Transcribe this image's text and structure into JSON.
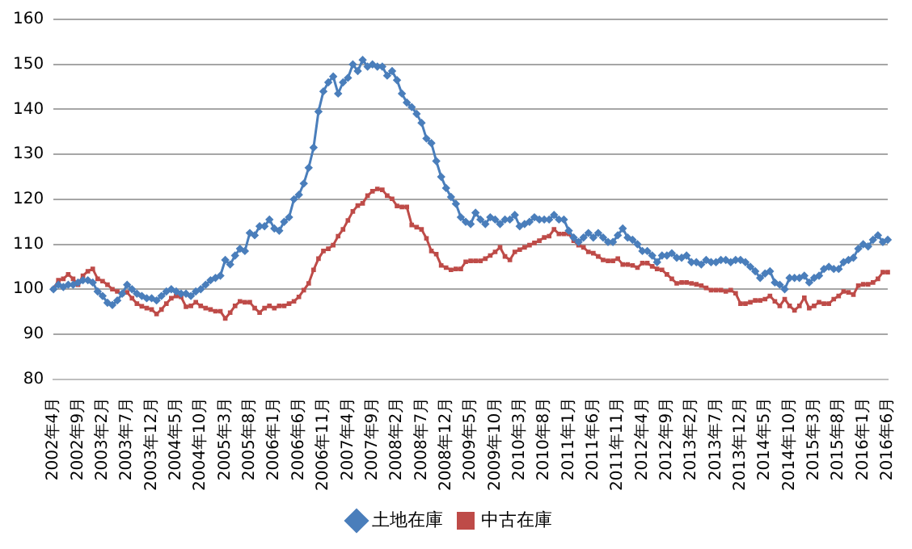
{
  "chart_data": {
    "type": "line",
    "categories": [
      "2002年4月",
      null,
      null,
      null,
      null,
      "2002年9月",
      null,
      null,
      null,
      null,
      "2003年2月",
      null,
      null,
      null,
      null,
      "2003年7月",
      null,
      null,
      null,
      null,
      "2003年12月",
      null,
      null,
      null,
      null,
      "2004年5月",
      null,
      null,
      null,
      null,
      "2004年10月",
      null,
      null,
      null,
      null,
      "2005年3月",
      null,
      null,
      null,
      null,
      "2005年8月",
      null,
      null,
      null,
      null,
      "2006年1月",
      null,
      null,
      null,
      null,
      "2006年6月",
      null,
      null,
      null,
      null,
      "2006年11月",
      null,
      null,
      null,
      null,
      "2007年4月",
      null,
      null,
      null,
      null,
      "2007年9月",
      null,
      null,
      null,
      null,
      "2008年2月",
      null,
      null,
      null,
      null,
      "2008年7月",
      null,
      null,
      null,
      null,
      "2008年12月",
      null,
      null,
      null,
      null,
      "2009年5月",
      null,
      null,
      null,
      null,
      "2009年10月",
      null,
      null,
      null,
      null,
      "2010年3月",
      null,
      null,
      null,
      null,
      "2010年8月",
      null,
      null,
      null,
      null,
      "2011年1月",
      null,
      null,
      null,
      null,
      "2011年6月",
      null,
      null,
      null,
      null,
      "2011年11月",
      null,
      null,
      null,
      null,
      "2012年4月",
      null,
      null,
      null,
      null,
      "2012年9月",
      null,
      null,
      null,
      null,
      "2013年2月",
      null,
      null,
      null,
      null,
      "2013年7月",
      null,
      null,
      null,
      null,
      "2013年12月",
      null,
      null,
      null,
      null,
      "2014年5月",
      null,
      null,
      null,
      null,
      "2014年10月",
      null,
      null,
      null,
      null,
      "2015年3月",
      null,
      null,
      null,
      null,
      "2015年8月",
      null,
      null,
      null,
      null,
      "2016年1月",
      null,
      null,
      null,
      null,
      "2016年6月"
    ],
    "series": [
      {
        "name": "土地在庫",
        "color": "#4a7ebb",
        "marker": "diamond",
        "values": [
          100,
          101,
          100.5,
          101,
          101,
          101.5,
          102,
          102,
          101.5,
          99.5,
          98.5,
          97,
          96.5,
          97.5,
          99,
          101,
          100,
          99,
          98.5,
          98,
          98,
          97.5,
          98.5,
          99.5,
          100,
          99.5,
          99,
          99,
          98.5,
          99.5,
          100,
          101,
          102,
          102.5,
          103,
          106.5,
          105.5,
          107.5,
          109,
          108.5,
          112.5,
          112,
          114,
          114,
          115.5,
          113.5,
          113,
          115,
          116,
          120,
          121,
          123.5,
          127,
          131.5,
          139.5,
          144,
          146,
          147.3,
          143.5,
          146,
          147,
          150,
          148.5,
          151,
          149.5,
          150,
          149.5,
          149.5,
          147.5,
          148.5,
          146.5,
          143.5,
          141.5,
          140.5,
          139,
          137,
          133.5,
          132.5,
          128.5,
          125,
          122.5,
          120.5,
          119,
          116,
          115,
          114.5,
          117,
          115.5,
          114.5,
          116,
          115.5,
          114.5,
          115.5,
          115.5,
          116.5,
          114,
          114.5,
          115,
          116,
          115.5,
          115.5,
          115.5,
          116.5,
          115.5,
          115.5,
          113,
          111.5,
          110.5,
          111.5,
          112.5,
          111.5,
          112.5,
          111.5,
          110.5,
          110.5,
          112,
          113.5,
          111.5,
          111,
          110,
          108.5,
          108.5,
          107.5,
          106,
          107.5,
          107.5,
          108,
          107,
          107,
          107.5,
          106,
          106,
          105.5,
          106.5,
          106,
          106,
          106.5,
          106.5,
          106,
          106.5,
          106.5,
          106,
          105,
          104,
          102.5,
          103.5,
          104,
          101.5,
          101,
          100,
          102.5,
          102.5,
          102.5,
          103,
          101.5,
          102.5,
          103,
          104.5,
          105,
          104.5,
          104.5,
          106,
          106.5,
          107,
          109,
          110,
          109.5,
          111,
          112,
          110.5,
          111
        ]
      },
      {
        "name": "中古在庫",
        "color": "#be4b48",
        "marker": "square",
        "values": [
          100,
          102,
          102.3,
          103.3,
          102.3,
          101,
          103,
          104,
          104.5,
          102.3,
          101.8,
          101,
          100,
          99.5,
          99,
          99.3,
          98,
          96.8,
          96.2,
          95.8,
          95.5,
          94.5,
          95.5,
          96.8,
          98,
          98.5,
          98.3,
          96.1,
          96.3,
          97.1,
          96.3,
          95.8,
          95.5,
          95.1,
          95.1,
          93.5,
          94.8,
          96.3,
          97.3,
          97.1,
          97.1,
          95.8,
          94.8,
          95.8,
          96.3,
          95.8,
          96.3,
          96.3,
          96.8,
          97.3,
          98.3,
          99.8,
          101.3,
          104.3,
          106.8,
          108.5,
          109,
          109.8,
          111.8,
          113.3,
          115.3,
          117.3,
          118.6,
          119.1,
          120.8,
          121.8,
          122.3,
          122.1,
          120.8,
          120.1,
          118.5,
          118.3,
          118.3,
          114.3,
          113.8,
          113.3,
          111.3,
          108.5,
          107.8,
          105.3,
          104.8,
          104.3,
          104.5,
          104.5,
          106.1,
          106.3,
          106.3,
          106.3,
          106.8,
          107.5,
          108.3,
          109.3,
          107.3,
          106.5,
          108.3,
          108.8,
          109.3,
          109.8,
          110.3,
          110.8,
          111.5,
          111.8,
          113.3,
          112.3,
          112.3,
          112.3,
          110.8,
          109.8,
          109.3,
          108.3,
          108,
          107.3,
          106.5,
          106.3,
          106.3,
          106.8,
          105.5,
          105.5,
          105.3,
          104.8,
          105.8,
          105.8,
          105.1,
          104.5,
          104.3,
          103.3,
          102.3,
          101.3,
          101.5,
          101.5,
          101.3,
          101.1,
          100.8,
          100.3,
          99.8,
          99.8,
          99.8,
          99.5,
          99.8,
          99.1,
          96.8,
          96.8,
          97.1,
          97.5,
          97.5,
          97.8,
          98.5,
          97.3,
          96.3,
          97.8,
          96.3,
          95.3,
          96.3,
          98.1,
          95.8,
          96.3,
          97.1,
          96.8,
          96.8,
          97.8,
          98.5,
          99.5,
          99.3,
          98.8,
          100.8,
          101.1,
          101.1,
          101.5,
          102.3,
          103.8,
          103.8
        ]
      }
    ],
    "ylim": [
      80,
      160
    ],
    "yticks": [
      80,
      90,
      100,
      110,
      120,
      130,
      140,
      150,
      160
    ],
    "grid": "y",
    "legend": "bottom",
    "line_style": "solid"
  }
}
